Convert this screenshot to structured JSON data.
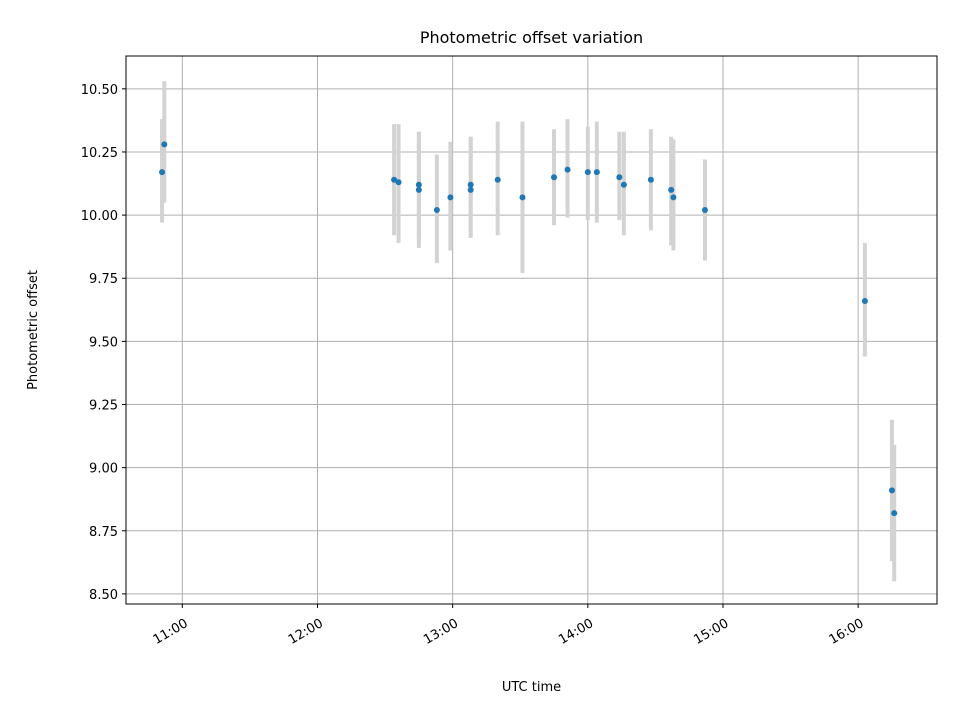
{
  "chart_data": {
    "type": "scatter",
    "title": "Photometric offset variation",
    "xlabel": "UTC time",
    "ylabel": "Photometric offset",
    "x_unit": "time-of-day",
    "xlim": [
      "10:35",
      "16:35"
    ],
    "ylim": [
      8.46,
      10.63
    ],
    "xticks": [
      "11:00",
      "12:00",
      "13:00",
      "14:00",
      "15:00",
      "16:00"
    ],
    "yticks": [
      "8.50",
      "8.75",
      "9.00",
      "9.25",
      "9.50",
      "9.75",
      "10.00",
      "10.25",
      "10.50"
    ],
    "grid": true,
    "point_color": "#1f77b4",
    "errorbar_color": "#d3d3d3",
    "points": [
      {
        "x": "10:51",
        "y": 10.17,
        "err_low": 9.97,
        "err_high": 10.38
      },
      {
        "x": "10:52",
        "y": 10.28,
        "err_low": 10.05,
        "err_high": 10.53
      },
      {
        "x": "12:34",
        "y": 10.14,
        "err_low": 9.92,
        "err_high": 10.36
      },
      {
        "x": "12:36",
        "y": 10.13,
        "err_low": 9.89,
        "err_high": 10.36
      },
      {
        "x": "12:45",
        "y": 10.1,
        "err_low": 9.87,
        "err_high": 10.33
      },
      {
        "x": "12:45",
        "y": 10.12,
        "err_low": 9.91,
        "err_high": 10.33
      },
      {
        "x": "12:53",
        "y": 10.02,
        "err_low": 9.81,
        "err_high": 10.24
      },
      {
        "x": "12:59",
        "y": 10.07,
        "err_low": 9.86,
        "err_high": 10.29
      },
      {
        "x": "13:08",
        "y": 10.12,
        "err_low": 9.91,
        "err_high": 10.31
      },
      {
        "x": "13:08",
        "y": 10.1,
        "err_low": 9.91,
        "err_high": 10.31
      },
      {
        "x": "13:20",
        "y": 10.14,
        "err_low": 9.92,
        "err_high": 10.37
      },
      {
        "x": "13:31",
        "y": 10.07,
        "err_low": 9.77,
        "err_high": 10.37
      },
      {
        "x": "13:45",
        "y": 10.15,
        "err_low": 9.96,
        "err_high": 10.34
      },
      {
        "x": "13:51",
        "y": 10.18,
        "err_low": 9.99,
        "err_high": 10.38
      },
      {
        "x": "14:00",
        "y": 10.17,
        "err_low": 9.98,
        "err_high": 10.35
      },
      {
        "x": "14:04",
        "y": 10.17,
        "err_low": 9.97,
        "err_high": 10.37
      },
      {
        "x": "14:14",
        "y": 10.15,
        "err_low": 9.98,
        "err_high": 10.33
      },
      {
        "x": "14:16",
        "y": 10.12,
        "err_low": 9.92,
        "err_high": 10.33
      },
      {
        "x": "14:28",
        "y": 10.14,
        "err_low": 9.94,
        "err_high": 10.34
      },
      {
        "x": "14:37",
        "y": 10.1,
        "err_low": 9.88,
        "err_high": 10.31
      },
      {
        "x": "14:38",
        "y": 10.07,
        "err_low": 9.86,
        "err_high": 10.3
      },
      {
        "x": "14:52",
        "y": 10.02,
        "err_low": 9.82,
        "err_high": 10.22
      },
      {
        "x": "16:03",
        "y": 9.66,
        "err_low": 9.44,
        "err_high": 9.89
      },
      {
        "x": "16:15",
        "y": 8.91,
        "err_low": 8.63,
        "err_high": 9.19
      },
      {
        "x": "16:16",
        "y": 8.82,
        "err_low": 8.55,
        "err_high": 9.09
      }
    ]
  }
}
